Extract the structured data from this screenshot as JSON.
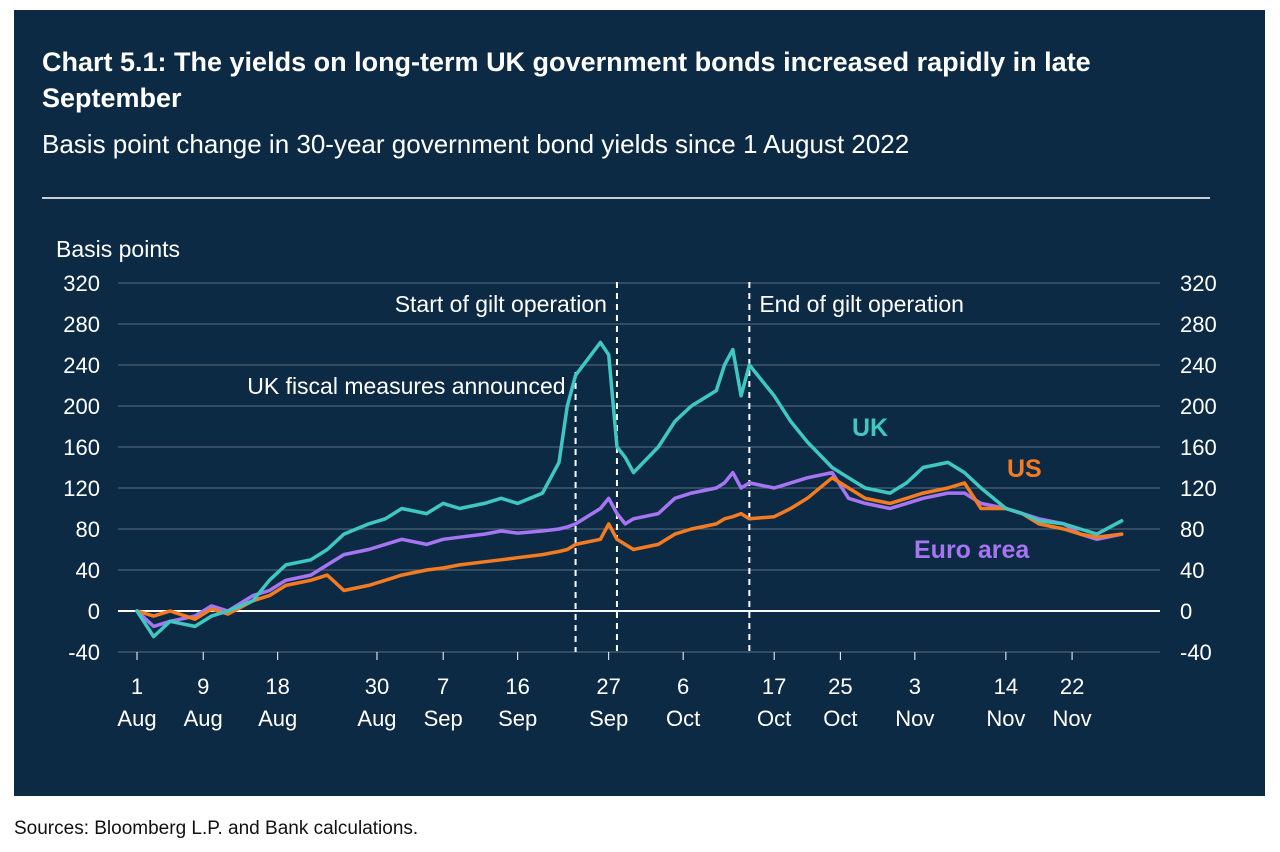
{
  "title": "Chart 5.1: The yields on long-term UK government bonds increased rapidly in late September",
  "subtitle": "Basis point change in 30-year government bond yields since 1 August 2022",
  "source": "Sources: Bloomberg L.P. and Bank calculations.",
  "colors": {
    "background": "#0d2a45",
    "uk": "#3ec8c1",
    "us": "#f47b20",
    "euro_area": "#a675f2",
    "text": "#ffffff",
    "grid": "#9aa5b1"
  },
  "chart_data": {
    "type": "line",
    "ylabel": "Basis points",
    "ylim": [
      -40,
      320
    ],
    "yticks": [
      -40,
      0,
      40,
      80,
      120,
      160,
      200,
      240,
      280,
      320
    ],
    "xlim": [
      "2022-08-01",
      "2022-11-29"
    ],
    "xticks": [
      {
        "date": "2022-08-01",
        "day": "1",
        "month": "Aug"
      },
      {
        "date": "2022-08-09",
        "day": "9",
        "month": "Aug"
      },
      {
        "date": "2022-08-18",
        "day": "18",
        "month": "Aug"
      },
      {
        "date": "2022-08-30",
        "day": "30",
        "month": "Aug"
      },
      {
        "date": "2022-09-07",
        "day": "7",
        "month": "Sep"
      },
      {
        "date": "2022-09-16",
        "day": "16",
        "month": "Sep"
      },
      {
        "date": "2022-09-27",
        "day": "27",
        "month": "Sep"
      },
      {
        "date": "2022-10-06",
        "day": "6",
        "month": "Oct"
      },
      {
        "date": "2022-10-17",
        "day": "17",
        "month": "Oct"
      },
      {
        "date": "2022-10-25",
        "day": "25",
        "month": "Oct"
      },
      {
        "date": "2022-11-03",
        "day": "3",
        "month": "Nov"
      },
      {
        "date": "2022-11-14",
        "day": "14",
        "month": "Nov"
      },
      {
        "date": "2022-11-22",
        "day": "22",
        "month": "Nov"
      }
    ],
    "annotations": [
      {
        "text": "UK fiscal measures announced",
        "date": "2022-09-23"
      },
      {
        "text": "Start of gilt operation",
        "date": "2022-09-28"
      },
      {
        "text": "End of gilt operation",
        "date": "2022-10-14"
      }
    ],
    "x": [
      "2022-08-01",
      "2022-08-03",
      "2022-08-05",
      "2022-08-08",
      "2022-08-10",
      "2022-08-12",
      "2022-08-15",
      "2022-08-17",
      "2022-08-19",
      "2022-08-22",
      "2022-08-24",
      "2022-08-26",
      "2022-08-29",
      "2022-08-31",
      "2022-09-02",
      "2022-09-05",
      "2022-09-07",
      "2022-09-09",
      "2022-09-12",
      "2022-09-14",
      "2022-09-16",
      "2022-09-19",
      "2022-09-21",
      "2022-09-22",
      "2022-09-23",
      "2022-09-26",
      "2022-09-27",
      "2022-09-28",
      "2022-09-29",
      "2022-09-30",
      "2022-10-03",
      "2022-10-05",
      "2022-10-07",
      "2022-10-10",
      "2022-10-11",
      "2022-10-12",
      "2022-10-13",
      "2022-10-14",
      "2022-10-17",
      "2022-10-19",
      "2022-10-21",
      "2022-10-24",
      "2022-10-26",
      "2022-10-28",
      "2022-10-31",
      "2022-11-02",
      "2022-11-04",
      "2022-11-07",
      "2022-11-09",
      "2022-11-11",
      "2022-11-14",
      "2022-11-16",
      "2022-11-18",
      "2022-11-21",
      "2022-11-23",
      "2022-11-25",
      "2022-11-28"
    ],
    "series": [
      {
        "name": "UK",
        "color": "#3ec8c1",
        "values": [
          0,
          -25,
          -10,
          -15,
          -5,
          0,
          10,
          30,
          45,
          50,
          60,
          75,
          85,
          90,
          100,
          95,
          105,
          100,
          105,
          110,
          105,
          115,
          145,
          200,
          230,
          262,
          250,
          160,
          150,
          135,
          160,
          185,
          200,
          215,
          240,
          255,
          210,
          240,
          210,
          185,
          165,
          140,
          130,
          120,
          115,
          125,
          140,
          145,
          135,
          120,
          100,
          95,
          88,
          85,
          80,
          75,
          88
        ]
      },
      {
        "name": "US",
        "color": "#f47b20",
        "values": [
          0,
          -5,
          0,
          -8,
          2,
          -3,
          10,
          15,
          25,
          30,
          35,
          20,
          25,
          30,
          35,
          40,
          42,
          45,
          48,
          50,
          52,
          55,
          58,
          60,
          65,
          70,
          85,
          70,
          65,
          60,
          65,
          75,
          80,
          85,
          90,
          92,
          95,
          90,
          92,
          100,
          110,
          130,
          120,
          110,
          105,
          110,
          115,
          120,
          125,
          100,
          100,
          95,
          85,
          80,
          75,
          72,
          75
        ]
      },
      {
        "name": "Euro area",
        "color": "#a675f2",
        "values": [
          0,
          -15,
          -10,
          -5,
          5,
          0,
          15,
          20,
          30,
          35,
          45,
          55,
          60,
          65,
          70,
          65,
          70,
          72,
          75,
          78,
          76,
          78,
          80,
          82,
          85,
          100,
          110,
          95,
          85,
          90,
          95,
          110,
          115,
          120,
          125,
          135,
          120,
          125,
          120,
          125,
          130,
          135,
          110,
          105,
          100,
          105,
          110,
          115,
          115,
          105,
          100,
          95,
          90,
          85,
          75,
          70,
          75
        ]
      }
    ],
    "series_labels": [
      {
        "name": "UK",
        "text": "UK"
      },
      {
        "name": "US",
        "text": "US"
      },
      {
        "name": "Euro area",
        "text": "Euro area"
      }
    ]
  }
}
